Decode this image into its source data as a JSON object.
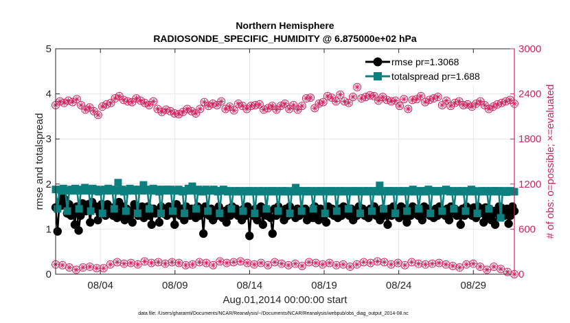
{
  "chart_data": {
    "type": "line",
    "title": "Northern Hemisphere",
    "subtitle": "RADIOSONDE_SPECIFIC_HUMIDITY @ 6.875000e+02 hPa",
    "xlabel": "Aug.01,2014 00:00:00 start",
    "ylabel_left": "rmse and totalspread",
    "ylabel_right": "# of obs: o=possible; ×=evaluated",
    "x_tick_labels": [
      "08/04",
      "08/09",
      "08/14",
      "08/19",
      "08/24",
      "08/29"
    ],
    "x_tick_days": [
      4,
      9,
      14,
      19,
      24,
      29
    ],
    "xlim": [
      1,
      31.75
    ],
    "ylim_left": [
      0,
      5
    ],
    "yticks_left": [
      "0",
      "1",
      "2",
      "3",
      "4",
      "5"
    ],
    "ylim_right": [
      0,
      3000
    ],
    "yticks_right": [
      "0",
      "600",
      "1200",
      "1800",
      "2400",
      "3000"
    ],
    "footer": "data file: /Users/gharamti/Documents/NCAR/Reanalysis/~/Documents/NCAR/Reanalysis/webpub/obs_diag_output_2014-08.nc",
    "colors": {
      "rmse": "#000000",
      "spread": "#0d7f7f",
      "obs": "#d1205e",
      "axis_right": "#d1205e",
      "grid": "#e6e6e6"
    },
    "series": [
      {
        "name": "rmse",
        "legend": "rmse pr=1.3068",
        "marker": "circle",
        "values": [
          1.48,
          0.95,
          1.6,
          1.52,
          1.7,
          1.65,
          1.35,
          1.55,
          1.3,
          1.4,
          1.1,
          1.5,
          0.97,
          1.3,
          1.57,
          1.45,
          1.4,
          1.55,
          1.15,
          1.6,
          1.45,
          1.5,
          1.2,
          1.35,
          1.55,
          1.45,
          1.3,
          1.55,
          1.4,
          1.4,
          1.3,
          1.5,
          1.25,
          1.6,
          1.35,
          1.5,
          1.2,
          1.45,
          1.3,
          1.4,
          1.15,
          1.55,
          1.45,
          1.3,
          1.4,
          1.5,
          1.25,
          1.35,
          1.5,
          1.3,
          1.1,
          1.45,
          1.35,
          1.4,
          1.15,
          1.5,
          1.35,
          1.45,
          1.3,
          1.5,
          1.4,
          1.35,
          1.1,
          1.55,
          1.4,
          1.3,
          1.45,
          1.2,
          1.5,
          1.35,
          1.3,
          1.45,
          1.4,
          1.25,
          1.5,
          1.3,
          1.45,
          0.9,
          1.5,
          1.35,
          1.3,
          1.45,
          1.2,
          1.4,
          1.3,
          1.5,
          1.35,
          1.25,
          1.4,
          1.15,
          1.45,
          1.3,
          1.5,
          1.35,
          1.45,
          1.3,
          1.4,
          1.2,
          1.45,
          1.3,
          1.5,
          0.85,
          1.4,
          1.3,
          1.45,
          1.2,
          1.35,
          1.5,
          1.1,
          1.45,
          1.3,
          1.4,
          1.25,
          0.9,
          1.45,
          1.3,
          1.5,
          1.35,
          1.4,
          1.2,
          1.45,
          1.3,
          1.5,
          1.35,
          1.4,
          1.25,
          1.45,
          1.3,
          1.4,
          1.35,
          1.45,
          1.2,
          1.3,
          1.4,
          1.25,
          1.5,
          1.35,
          1.2,
          1.45,
          1.3,
          1.4,
          1.15,
          1.5,
          1.35,
          1.45,
          1.3,
          1.4,
          1.25,
          1.45,
          1.3,
          1.5,
          1.35,
          1.4,
          1.3,
          1.45,
          1.2,
          1.4,
          1.3,
          1.5,
          1.35,
          1.45,
          1.3,
          1.4,
          1.25,
          1.45,
          1.35,
          1.5,
          1.3,
          1.4,
          1.2,
          1.45,
          1.3,
          1.35,
          1.1,
          1.45,
          1.3,
          1.5,
          1.35,
          1.4,
          1.25,
          1.5,
          1.3,
          1.45,
          1.15,
          1.4,
          1.3,
          1.5,
          1.35,
          1.45,
          1.3,
          1.4,
          1.2,
          1.5,
          1.35,
          1.45,
          1.3,
          1.4,
          1.25,
          1.45,
          1.3,
          1.5,
          1.35,
          1.4,
          1.3,
          1.45,
          1.2,
          1.5,
          1.35,
          1.45,
          1.3,
          1.4,
          1.1,
          1.45,
          1.3,
          1.5,
          1.35,
          1.45,
          1.3,
          1.48,
          1.25,
          1.5,
          1.35,
          1.45,
          1.15,
          1.48,
          1.3,
          1.45,
          1.2,
          1.4,
          1.1,
          1.35,
          1.5,
          1.48,
          1.35,
          1.3,
          1.45,
          1.12,
          1.3,
          1.5,
          1.4
        ]
      },
      {
        "name": "totalspread",
        "legend": "totalspread pr=1.688",
        "marker": "square",
        "values": [
          1.88,
          1.45,
          1.88,
          1.85,
          1.9,
          1.85,
          1.4,
          1.85,
          1.88,
          1.85,
          1.9,
          1.85,
          1.45,
          1.88,
          1.85,
          1.92,
          1.88,
          1.85,
          1.4,
          1.9,
          1.85,
          1.88,
          1.83,
          1.85,
          1.35,
          1.88,
          1.85,
          1.9,
          1.85,
          1.88,
          1.45,
          1.85,
          2.03,
          1.85,
          1.88,
          1.83,
          1.4,
          1.85,
          1.9,
          1.85,
          1.88,
          1.85,
          1.35,
          1.88,
          1.85,
          1.98,
          1.85,
          1.88,
          1.45,
          1.85,
          1.9,
          1.85,
          1.88,
          1.83,
          1.35,
          1.88,
          1.85,
          1.88,
          1.85,
          1.88,
          1.4,
          1.85,
          1.85,
          1.88,
          1.85,
          1.83,
          1.35,
          1.85,
          1.9,
          1.85,
          1.95,
          1.85,
          1.45,
          1.88,
          1.85,
          1.83,
          1.85,
          1.88,
          1.4,
          1.85,
          1.85,
          1.88,
          1.85,
          1.83,
          1.35,
          1.85,
          1.88,
          1.85,
          1.83,
          1.85,
          1.45,
          1.83,
          1.85,
          1.83,
          1.85,
          1.83,
          1.4,
          1.85,
          1.83,
          1.85,
          1.83,
          1.85,
          1.35,
          1.83,
          1.85,
          1.83,
          1.85,
          1.83,
          1.45,
          1.85,
          1.83,
          1.85,
          1.83,
          1.85,
          1.4,
          1.83,
          1.85,
          1.83,
          1.85,
          1.83,
          1.35,
          1.83,
          1.85,
          1.92,
          1.83,
          1.85,
          1.4,
          1.85,
          1.83,
          1.85,
          1.83,
          1.85,
          1.45,
          1.83,
          1.85,
          1.83,
          1.85,
          1.83,
          1.35,
          1.85,
          1.83,
          1.85,
          1.83,
          1.85,
          1.4,
          1.83,
          1.85,
          1.83,
          1.85,
          1.83,
          1.45,
          1.85,
          1.83,
          1.85,
          1.83,
          1.85,
          1.35,
          1.83,
          1.85,
          1.83,
          1.85,
          1.83,
          1.4,
          1.85,
          1.83,
          1.85,
          1.97,
          1.83,
          1.45,
          1.85,
          1.83,
          1.85,
          1.83,
          1.85,
          1.35,
          1.83,
          1.85,
          1.83,
          1.85,
          1.83,
          1.4,
          1.85,
          1.83,
          1.88,
          1.83,
          1.85,
          1.45,
          1.83,
          1.85,
          1.83,
          1.85,
          1.88,
          1.35,
          1.85,
          1.83,
          1.85,
          1.83,
          1.85,
          1.4,
          1.85,
          1.88,
          1.85,
          1.83,
          1.85,
          1.45,
          1.83,
          1.85,
          1.83,
          1.85,
          1.83,
          1.4,
          1.85,
          1.83,
          1.88,
          1.85,
          1.83,
          1.35,
          1.83,
          1.85,
          1.83,
          1.85,
          1.83,
          1.45,
          1.85,
          1.83,
          1.85,
          1.83,
          1.85,
          1.25,
          1.83,
          1.85,
          1.82,
          1.83,
          1.85,
          1.83,
          1.83
        ]
      },
      {
        "name": "possible_obs",
        "marker": "circle-open",
        "axis": "right",
        "values": [
          2250,
          2300,
          2280,
          2310,
          2290,
          2330,
          2250,
          2190,
          2220,
          2170,
          2120,
          2230,
          2260,
          2280,
          2340,
          2370,
          2320,
          2300,
          2290,
          2340,
          2310,
          2280,
          2250,
          2300,
          2200,
          2160,
          2190,
          2170,
          2140,
          2130,
          2160,
          2200,
          2170,
          2140,
          2200,
          2290,
          2240,
          2270,
          2250,
          2300,
          2200,
          2230,
          2180,
          2270,
          2240,
          2200,
          2240,
          2250,
          2260,
          2190,
          2210,
          2240,
          2190,
          2240,
          2270,
          2200,
          2250,
          2190,
          2240,
          2340,
          2350,
          2210,
          2270,
          2290,
          2370,
          2350,
          2300,
          2390,
          2300,
          2280,
          2360,
          2490,
          2340,
          2360,
          2380,
          2370,
          2310,
          2360,
          2320,
          2300,
          2310,
          2240,
          2330,
          2200,
          2320,
          2330,
          2370,
          2290,
          2320,
          2340,
          2360,
          2250,
          2310,
          2240,
          2280,
          2300,
          2250,
          2260,
          2230,
          2270,
          2300,
          2250,
          2200,
          2230,
          2260,
          2280,
          2300,
          2320,
          2270
        ]
      },
      {
        "name": "evaluated_obs",
        "marker": "cross",
        "axis": "right",
        "values": [
          2250,
          2300,
          2280,
          2310,
          2290,
          2330,
          2250,
          2190,
          2220,
          2170,
          2120,
          2230,
          2260,
          2280,
          2340,
          2370,
          2320,
          2300,
          2290,
          2340,
          2310,
          2280,
          2250,
          2300,
          2200,
          2160,
          2190,
          2170,
          2140,
          2130,
          2160,
          2200,
          2170,
          2140,
          2200,
          2290,
          2240,
          2270,
          2250,
          2300,
          2200,
          2230,
          2180,
          2270,
          2240,
          2200,
          2240,
          2250,
          2260,
          2190,
          2210,
          2240,
          2190,
          2240,
          2270,
          2200,
          2250,
          2190,
          2240,
          2340,
          2350,
          2210,
          2270,
          2290,
          2370,
          2350,
          2300,
          2390,
          2300,
          2280,
          2360,
          2490,
          2340,
          2360,
          2380,
          2370,
          2310,
          2360,
          2320,
          2300,
          2310,
          2240,
          2330,
          2200,
          2320,
          2330,
          2370,
          2290,
          2320,
          2340,
          2360,
          2250,
          2310,
          2240,
          2280,
          2300,
          2250,
          2260,
          2230,
          2270,
          2300,
          2250,
          2200,
          2230,
          2260,
          2280,
          2300,
          2320,
          2270
        ]
      },
      {
        "name": "possible_obs_low",
        "marker": "circle-open",
        "axis": "right",
        "values": [
          130,
          120,
          90,
          60,
          90,
          100,
          80,
          80,
          130,
          160,
          140,
          150,
          130,
          170,
          150,
          160,
          140,
          160,
          150,
          120,
          130,
          160,
          150,
          120,
          170,
          150,
          160,
          170,
          150,
          130,
          150,
          120,
          160,
          140,
          120,
          140,
          110,
          160,
          150,
          130,
          150,
          120,
          130,
          100,
          130,
          160,
          150,
          170,
          160,
          130,
          150,
          120,
          160,
          140,
          130,
          140,
          150,
          130,
          110,
          90,
          130,
          140,
          100,
          60,
          100,
          70,
          30,
          0
        ]
      },
      {
        "name": "evaluated_obs_low",
        "marker": "cross",
        "axis": "right",
        "values": [
          130,
          120,
          90,
          60,
          90,
          100,
          80,
          80,
          130,
          160,
          140,
          150,
          130,
          170,
          150,
          160,
          140,
          160,
          150,
          120,
          130,
          160,
          150,
          120,
          170,
          150,
          160,
          170,
          150,
          130,
          150,
          120,
          160,
          140,
          120,
          140,
          110,
          160,
          150,
          130,
          150,
          120,
          130,
          100,
          130,
          160,
          150,
          170,
          160,
          130,
          150,
          120,
          160,
          140,
          130,
          140,
          150,
          130,
          110,
          90,
          130,
          140,
          100,
          60,
          100,
          70,
          30,
          0
        ]
      }
    ]
  }
}
